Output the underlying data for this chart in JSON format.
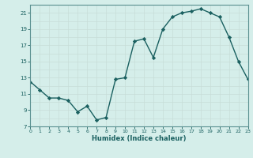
{
  "x": [
    0,
    1,
    2,
    3,
    4,
    5,
    6,
    7,
    8,
    9,
    10,
    11,
    12,
    13,
    14,
    15,
    16,
    17,
    18,
    19,
    20,
    21,
    22,
    23
  ],
  "y": [
    12.5,
    11.5,
    10.5,
    10.5,
    10.2,
    8.8,
    9.5,
    7.8,
    8.1,
    12.8,
    13.0,
    17.5,
    17.8,
    15.5,
    19.0,
    20.5,
    21.0,
    21.2,
    21.5,
    21.0,
    20.5,
    18.0,
    15.0,
    12.8
  ],
  "xlim": [
    0,
    23
  ],
  "ylim": [
    7,
    22
  ],
  "yticks": [
    7,
    9,
    11,
    13,
    15,
    17,
    19,
    21
  ],
  "xticks": [
    0,
    1,
    2,
    3,
    4,
    5,
    6,
    7,
    8,
    9,
    10,
    11,
    12,
    13,
    14,
    15,
    16,
    17,
    18,
    19,
    20,
    21,
    22,
    23
  ],
  "xlabel": "Humidex (Indice chaleur)",
  "line_color": "#1a6060",
  "marker": "D",
  "marker_size": 2.2,
  "bg_color": "#d5eeea",
  "grid_color": "#c8ddd8",
  "axis_color": "#5a9090",
  "tick_color": "#1a6060",
  "label_color": "#1a6060",
  "linewidth": 1.0,
  "tick_fontsize": 4.5,
  "xlabel_fontsize": 6.0
}
